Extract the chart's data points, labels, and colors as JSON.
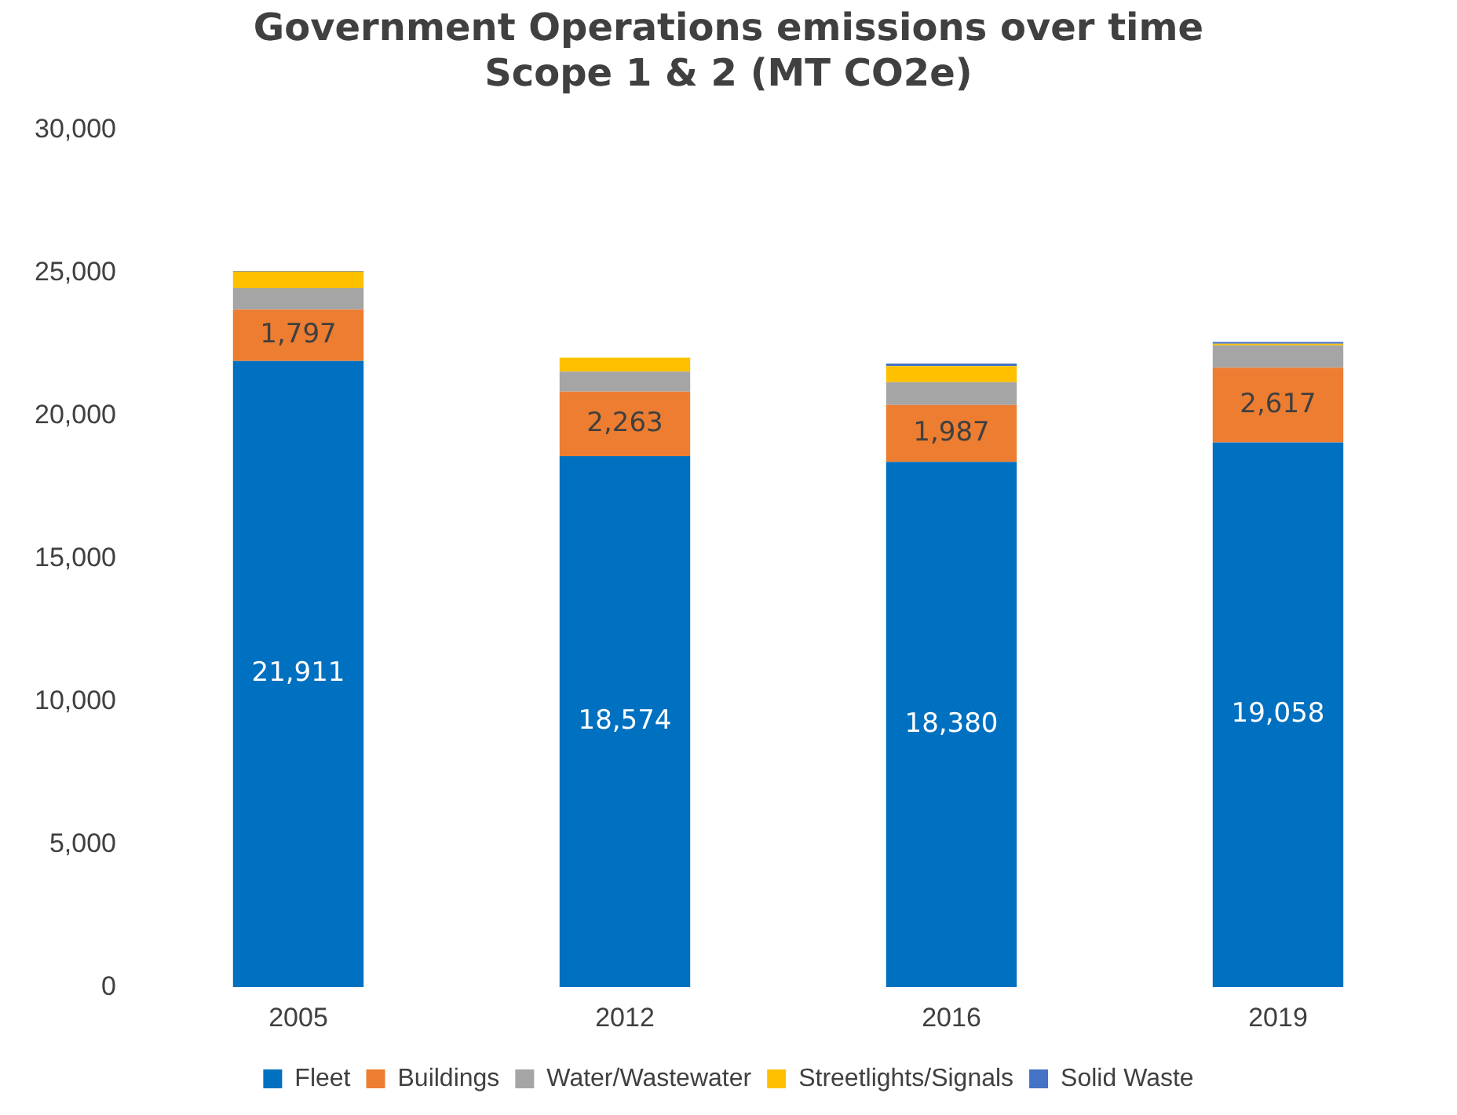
{
  "chart_data": {
    "type": "bar",
    "title": "Government Operations emissions over time\nScope 1 & 2 (MT CO2e)",
    "categories": [
      "2005",
      "2012",
      "2016",
      "2019"
    ],
    "stacked": true,
    "series": [
      {
        "name": "Fleet",
        "color": "#0070c0",
        "values": [
          21911,
          18574,
          18380,
          19058
        ],
        "value_labels": [
          "21,911",
          "18,574",
          "18,380",
          "19,058"
        ]
      },
      {
        "name": "Buildings",
        "color": "#ed7d31",
        "values": [
          1797,
          2263,
          1987,
          2617
        ],
        "value_labels": [
          "1,797",
          "2,263",
          "1,987",
          "2,617"
        ]
      },
      {
        "name": "Water/Wastewater",
        "color": "#a5a5a5",
        "values": [
          750,
          700,
          800,
          780
        ]
      },
      {
        "name": "Streetlights/Signals",
        "color": "#ffc000",
        "values": [
          580,
          490,
          560,
          60
        ]
      },
      {
        "name": "Solid Waste",
        "color": "#4472c4",
        "values": [
          20,
          null,
          90,
          60
        ]
      }
    ],
    "ylim": [
      0,
      30000
    ],
    "yticks": [
      0,
      {
        "value": 5000,
        "label": "5,000"
      },
      {
        "value": 10000,
        "label": "10,000"
      },
      {
        "value": 15000,
        "label": "15,000"
      },
      {
        "value": 20000,
        "label": "20,000"
      },
      {
        "value": 25000,
        "label": "25,000"
      },
      {
        "value": 30000,
        "label": "30,000"
      }
    ],
    "grid": false,
    "legend": "bottom"
  }
}
